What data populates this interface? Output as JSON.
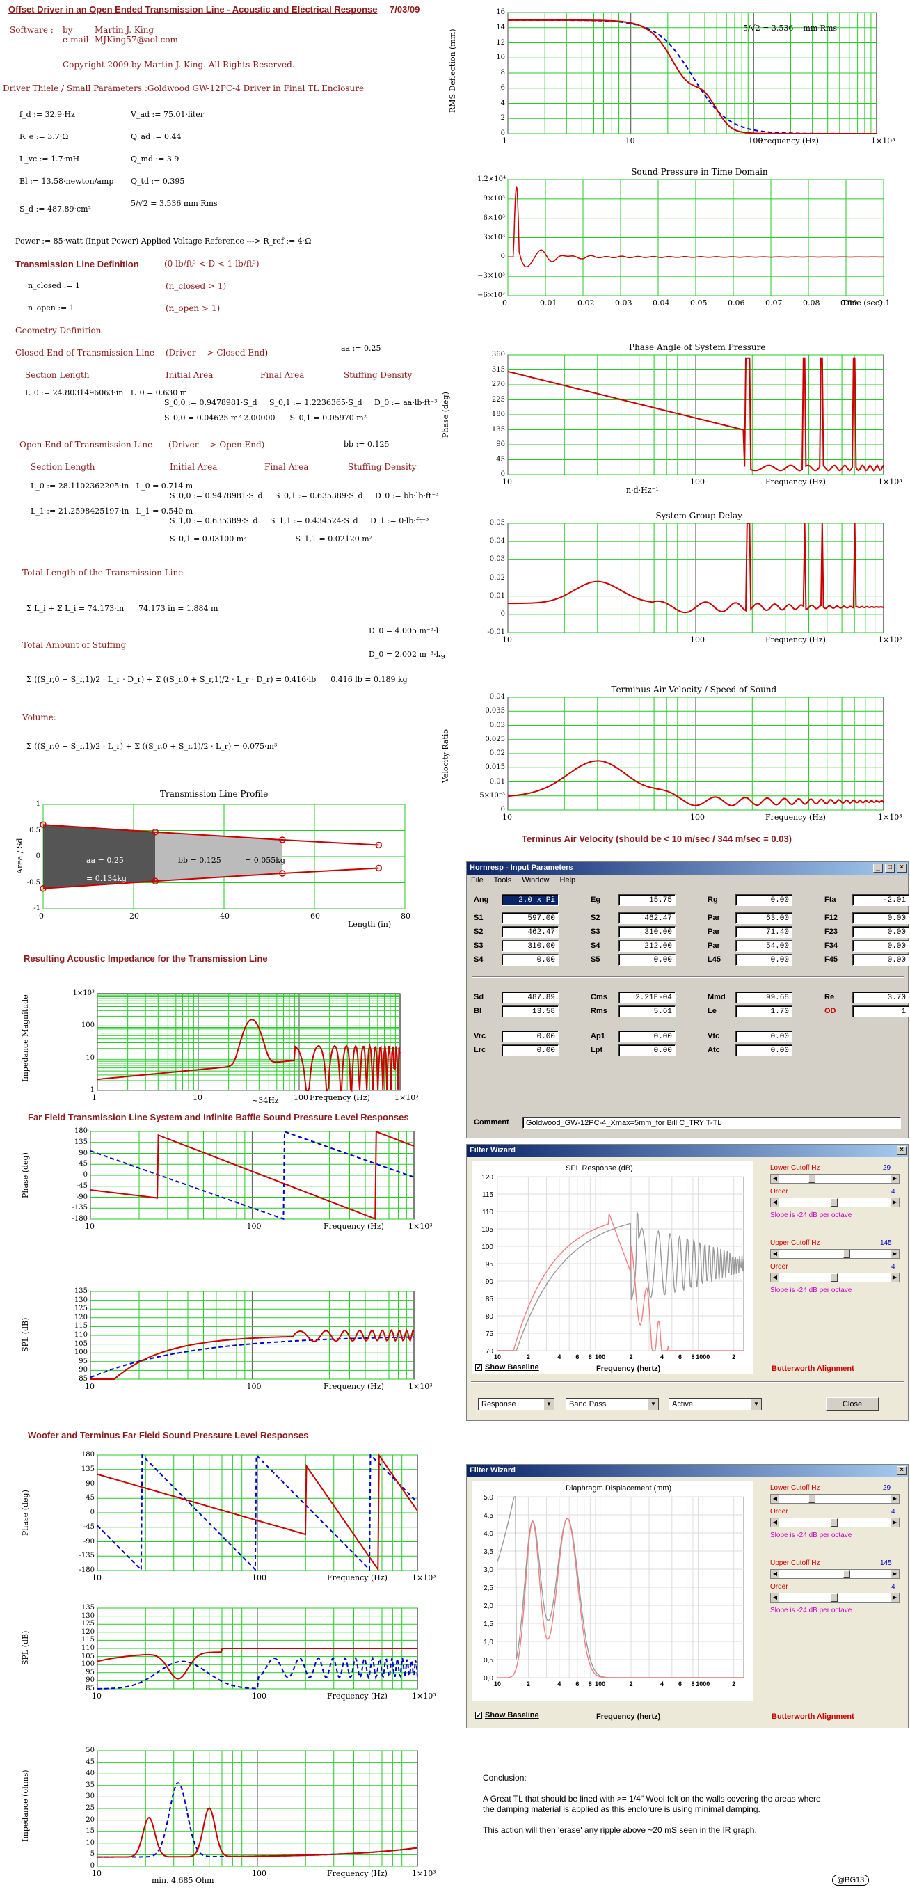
{
  "title": "Offset Driver in an Open Ended Transmission Line - Acoustic and Electrical Response",
  "date": "7/03/09",
  "software_label": "Software :",
  "by_label": "by",
  "author": "Martin J. King",
  "email_label": "e-mail",
  "email": "MJKing57@aol.com",
  "copyright": "Copyright 2009 by Martin J. King. All Rights Reserved.",
  "driver_header": "Driver Thiele / Small Parameters :Goldwood GW-12PC-4  Driver in Final TL Enclosure",
  "params_left": [
    "f_d := 32.9·Hz",
    "R_e := 3.7·Ω",
    "L_vc := 1.7·mH",
    "Bl := 13.58·newton/amp",
    "S_d := 487.89·cm²"
  ],
  "params_right": [
    "V_ad := 75.01·liter",
    "Q_ad := 0.44",
    "Q_md := 3.9",
    "Q_td := 0.395",
    "5/√2 = 3.536    mm Rms"
  ],
  "power_line": "Power := 85·watt      (Input Power)   Applied Voltage Reference --->     R_ref := 4·Ω",
  "tl_def_header": "Transmission Line Definition",
  "tl_def_note": "(0 lb/ft³ < D < 1 lb/ft³)",
  "n_closed": "n_closed := 1",
  "n_closed_note": "(n_closed > 1)",
  "n_open": "n_open := 1",
  "n_open_note": "(n_open > 1)",
  "geometry_def": "Geometry Definition",
  "closed_end": "Closed End of Transmission Line",
  "closed_end_note": "(Driver ---> Closed End)",
  "aa": "aa := 0.25",
  "col_heads": [
    "Section Length",
    "Initial Area",
    "Final Area",
    "Stuffing Density"
  ],
  "closed_rows": [
    "L_0 := 24.8031496063·in   L_0 = 0.630 m",
    "S_0,0 := 0.9478981·S_d     S_0,1 := 1.2236365·S_d     D_0 := aa·lb·ft⁻³",
    "S_0,0 = 0.04625 m² 2.00000      S_0,1 = 0.05970 m²"
  ],
  "open_end": "Open End of Transmission Line",
  "open_end_note": "(Driver ---> Open End)",
  "bb": "bb := 0.125",
  "open_rows": [
    "L_0 := 28.1102362205·in   L_0 = 0.714 m",
    "S_0,0 := 0.9478981·S_d     S_0,1 := 0.635389·S_d     D_0 := bb·lb·ft⁻³",
    "L_1 := 21.2598425197·in   L_1 = 0.540 m",
    "S_1,0 := 0.635389·S_d     S_1,1 := 0.434524·S_d     D_1 := 0·lb·ft⁻³",
    "S_0,1 = 0.03100 m²                    S_1,1 = 0.02120 m²"
  ],
  "total_length_header": "Total Length of the Transmission Line",
  "total_length_eq": "Σ L_i + Σ L_i = 74.173·in      74.173 in = 1.884 m",
  "d_vals": [
    "D_0 = 4.005 m⁻³·kg",
    "D_0 = 2.002 m⁻³·kg"
  ],
  "stuffing_header": "Total Amount of Stuffing",
  "stuffing_eq": "Σ ((S_r,0 + S_r,1)/2 · L_r · D_r) + Σ ((S_r,0 + S_r,1)/2 · L_r · D_r) = 0.416·lb      0.416 lb = 0.189 kg",
  "volume_header": "Volume:",
  "volume_eq": "Σ ((S_r,0 + S_r,1)/2 · L_r) + Σ ((S_r,0 + S_r,1)/2 · L_r) = 0.075·m³",
  "profile_title": "Transmission Line Profile",
  "profile_labels": [
    "aa = 0.25",
    "= 0.134kg",
    "bb = 0.125",
    "= 0.055kg"
  ],
  "profile_ylabel": "Area / Sd",
  "profile_xlabel": "Length (in)",
  "impedance_header": "Resulting Acoustic Impedance for the Transmission Line",
  "impedance_ylabel": "Impedance Magnitude",
  "impedance_annot": "~34Hz",
  "far_field_header": "Far Field Transmission Line System and Infinite Baffle Sound Pressure Level Responses",
  "woofer_header": "Woofer and Terminus Far Field Sound Pressure Level Responses",
  "elec_ylabel": "Impedance (ohms)",
  "elec_annot": "min. 4.685 Ohm",
  "freq_label": "Frequency (Hz)",
  "phase_ylabel": "Phase (deg)",
  "spl_ylabel": "SPL (dB)",
  "rms_ylabel": "RMS Deflection (mm)",
  "rms_annot": "5/√2 = 3.536    mm Rms",
  "sp_title": "Sound Pressure in Time Domain",
  "sp_xlabel": "Time (sec)",
  "pa_title": "Phase Angle of System Pressure",
  "pa_ylabel": "Phase (deg)",
  "gd_title": "System Group Delay",
  "gd_sublabel": "n·d·Hz⁻¹",
  "tv_title": "Terminus Air Velocity / Speed of Sound",
  "tv_ylabel": "Velocity Ratio",
  "tv_note": "Terminus Air Velocity (should be < 10 m/sec / 344 m/sec = 0.03)",
  "hornresp": {
    "title": "Hornresp - Input Parameters",
    "menu": [
      "File",
      "Tools",
      "Window",
      "Help"
    ],
    "rows": [
      [
        [
          "Ang",
          "2.0 x Pi"
        ],
        [
          "Eg",
          "15.75"
        ],
        [
          "Rg",
          "0.00"
        ],
        [
          "Fta",
          "-2.01"
        ]
      ],
      [
        [
          "S1",
          "597.00"
        ],
        [
          "S2",
          "462.47"
        ],
        [
          "Par",
          "63.00"
        ],
        [
          "F12",
          "0.00"
        ]
      ],
      [
        [
          "S2",
          "462.47"
        ],
        [
          "S3",
          "310.00"
        ],
        [
          "Par",
          "71.40"
        ],
        [
          "F23",
          "0.00"
        ]
      ],
      [
        [
          "S3",
          "310.00"
        ],
        [
          "S4",
          "212.00"
        ],
        [
          "Par",
          "54.00"
        ],
        [
          "F34",
          "0.00"
        ]
      ],
      [
        [
          "S4",
          "0.00"
        ],
        [
          "S5",
          "0.00"
        ],
        [
          "L45",
          "0.00"
        ],
        [
          "F45",
          "0.00"
        ]
      ],
      [
        [
          "Sd",
          "487.89"
        ],
        [
          "Cms",
          "2.21E-04"
        ],
        [
          "Mmd",
          "99.68"
        ],
        [
          "Re",
          "3.70"
        ]
      ],
      [
        [
          "Bl",
          "13.58"
        ],
        [
          "Rms",
          "5.61"
        ],
        [
          "Le",
          "1.70"
        ],
        [
          "OD",
          "1"
        ]
      ],
      [
        [
          "Vrc",
          "0.00"
        ],
        [
          "Ap1",
          "0.00"
        ],
        [
          "Vtc",
          "0.00"
        ],
        [
          "",
          ""
        ]
      ],
      [
        [
          "Lrc",
          "0.00"
        ],
        [
          "Lpt",
          "0.00"
        ],
        [
          "Atc",
          "0.00"
        ],
        [
          "",
          ""
        ]
      ]
    ],
    "comment_label": "Comment",
    "comment": "Goldwood_GW-12PC-4_Xmax=5mm_for Bill C_TRY T-TL"
  },
  "fw1": {
    "title": "Filter Wizard",
    "plot_title": "SPL Response (dB)",
    "yticks": [
      "120",
      "115",
      "110",
      "105",
      "100",
      "95",
      "90",
      "85",
      "80",
      "75",
      "70"
    ],
    "xticks": [
      "10",
      "2",
      "4",
      "6",
      "8",
      "100",
      "2",
      "4",
      "6",
      "8",
      "1000",
      "2"
    ],
    "xlabel": "Frequency (hertz)",
    "lower_cutoff": "Lower Cutoff  Hz",
    "lower_val": "29",
    "order": "Order",
    "order_val": "4",
    "slope": "Slope is -24 dB per octave",
    "upper_cutoff": "Upper Cutoff  Hz",
    "upper_val": "145",
    "show_baseline": "Show Baseline",
    "alignment": "Butterworth Alignment",
    "combos": [
      "Response",
      "Band Pass",
      "Active"
    ],
    "close": "Close"
  },
  "fw2": {
    "title": "Filter Wizard",
    "plot_title": "Diaphragm Displacement (mm)",
    "yticks": [
      "5,0",
      "4,5",
      "4,0",
      "3,5",
      "3,0",
      "2,5",
      "2,0",
      "1,5",
      "1,0",
      "0,5",
      "0,0"
    ],
    "xticks": [
      "10",
      "2",
      "4",
      "6",
      "8",
      "100",
      "2",
      "4",
      "6",
      "8",
      "1000",
      "2"
    ],
    "xlabel": "Frequency (hertz)",
    "lower_cutoff": "Lower Cutoff  Hz",
    "lower_val": "29",
    "order": "Order",
    "order_val": "4",
    "slope": "Slope is -24 dB per octave",
    "upper_cutoff": "Upper Cutoff  Hz",
    "upper_val": "145",
    "show_baseline": "Show Baseline",
    "alignment": "Butterworth Alignment"
  },
  "conclusion_title": "Conclusion:",
  "conclusion_lines": [
    "A Great TL that should be lined with >= 1/4\"  Wool felt on the walls covering the areas where",
    "the damping material is applied as this enclorure is using minimal damping.",
    "",
    "This action will then 'erase' any ripple above ~20 mS seen in the IR graph."
  ],
  "badge": "@BG13",
  "colors": {
    "grid": "#22cc22",
    "red": "#cc0000",
    "blue": "#0000cc",
    "dark": "#8b1a1a"
  }
}
